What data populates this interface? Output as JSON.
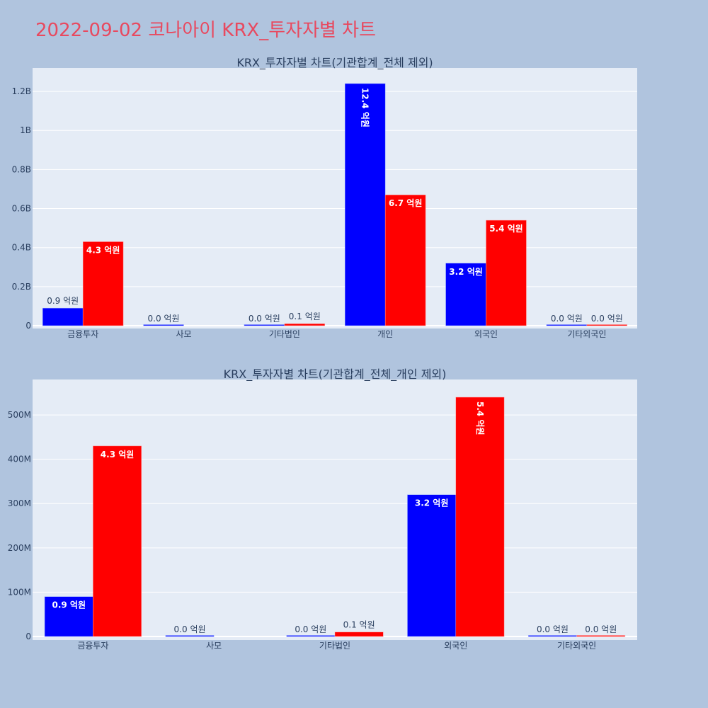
{
  "title": "2022-09-02 코나아이 KRX_투자자별 차트",
  "colors": {
    "background": "#b0c4de",
    "plot_bg": "#e5ecf6",
    "title": "#e8495f",
    "series_a": "#0000ff",
    "series_b": "#ff0000",
    "text": "#2a3f5f"
  },
  "chart_data": [
    {
      "type": "bar",
      "title": "KRX_투자자별 차트(기관합계_전체 제외)",
      "categories": [
        "금융투자",
        "사모",
        "기타법인",
        "개인",
        "외국인",
        "기타외국인"
      ],
      "ylim": [
        0,
        1320000000
      ],
      "yticks": [
        0,
        200000000,
        400000000,
        600000000,
        800000000,
        1000000000,
        1200000000
      ],
      "ytick_labels": [
        "0",
        "0.2B",
        "0.4B",
        "0.6B",
        "0.8B",
        "1B",
        "1.2B"
      ],
      "grid": true,
      "series": [
        {
          "color": "#0000ff",
          "values": [
            90000000,
            0,
            0,
            1240000000,
            320000000,
            0
          ],
          "labels": [
            "0.9 억원",
            "0.0 억원",
            "0.0 억원",
            "12.4 억원",
            "3.2 억원",
            "0.0 억원"
          ]
        },
        {
          "color": "#ff0000",
          "values": [
            430000000,
            null,
            10000000,
            670000000,
            540000000,
            0
          ],
          "labels": [
            "4.3 억원",
            "",
            "0.1 억원",
            "6.7 억원",
            "5.4 억원",
            "0.0 억원"
          ]
        }
      ]
    },
    {
      "type": "bar",
      "title": "KRX_투자자별 차트(기관합계_전체_개인 제외)",
      "categories": [
        "금융투자",
        "사모",
        "기타법인",
        "외국인",
        "기타외국인"
      ],
      "ylim": [
        0,
        580000000
      ],
      "yticks": [
        0,
        100000000,
        200000000,
        300000000,
        400000000,
        500000000
      ],
      "ytick_labels": [
        "0",
        "100M",
        "200M",
        "300M",
        "400M",
        "500M"
      ],
      "grid": true,
      "series": [
        {
          "color": "#0000ff",
          "values": [
            90000000,
            0,
            0,
            320000000,
            0
          ],
          "labels": [
            "0.9 억원",
            "0.0 억원",
            "0.0 억원",
            "3.2 억원",
            "0.0 억원"
          ]
        },
        {
          "color": "#ff0000",
          "values": [
            430000000,
            null,
            10000000,
            540000000,
            0
          ],
          "labels": [
            "4.3 억원",
            "",
            "0.1 억원",
            "5.4 억원",
            "0.0 억원"
          ]
        }
      ]
    }
  ]
}
